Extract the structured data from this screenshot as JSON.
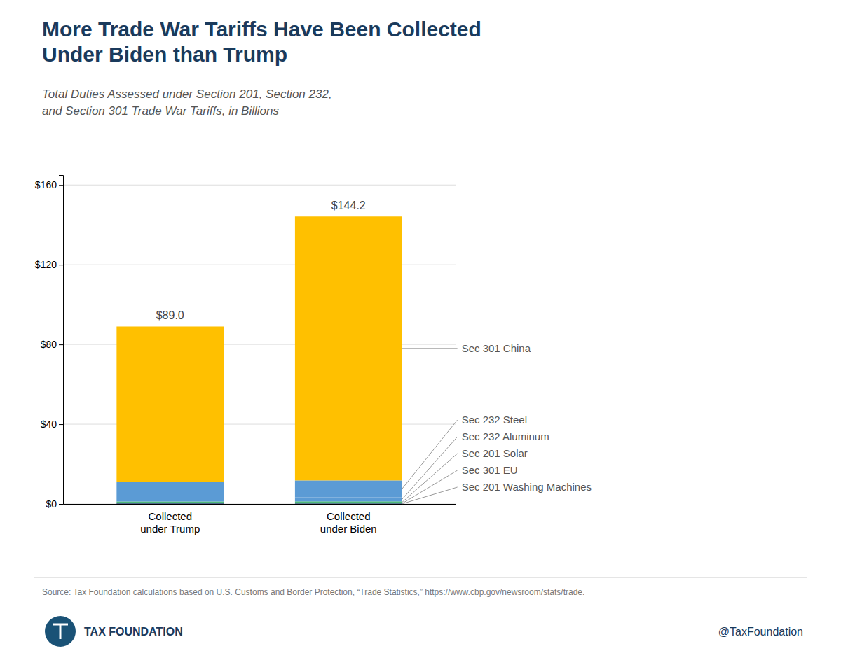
{
  "chart_data": {
    "type": "bar",
    "stacked": true,
    "title": "More Trade War Tariffs Have Been Collected\nUnder Biden than Trump",
    "subtitle": "Total Duties Assessed under Section 201, Section 232,\nand Section 301 Trade War Tariffs, in Billions",
    "categories": [
      "Collected\nunder Trump",
      "Collected\nunder Biden"
    ],
    "series": [
      {
        "name": "Sec 201 Washing Machines",
        "color": "#1c3f6e",
        "values": [
          0.15,
          0.1
        ]
      },
      {
        "name": "Sec 301 EU",
        "color": "#1c3f6e",
        "values": [
          0.2,
          0.2
        ]
      },
      {
        "name": "Sec 201 Solar",
        "color": "#4db87a",
        "values": [
          0.9,
          1.0
        ]
      },
      {
        "name": "Sec 232 Aluminum",
        "color": "#5b9bd5",
        "values": [
          1.9,
          2.0
        ]
      },
      {
        "name": "Sec 232 Steel",
        "color": "#5b9bd5",
        "values": [
          7.8,
          8.5
        ]
      },
      {
        "name": "Sec 301 China",
        "color": "#ffc000",
        "values": [
          78.05,
          132.4
        ]
      }
    ],
    "totals": [
      89.0,
      144.2
    ],
    "total_labels": [
      "$89.0",
      "$144.2"
    ],
    "ylim": [
      0,
      165
    ],
    "yticks": [
      {
        "value": 0,
        "label": "$0"
      },
      {
        "value": 40,
        "label": "$40"
      },
      {
        "value": 80,
        "label": "$80"
      },
      {
        "value": 120,
        "label": "$120"
      },
      {
        "value": 160,
        "label": "$160"
      }
    ],
    "grid": true,
    "legend": false,
    "source": "Source: Tax Foundation calculations based on U.S. Customs and Border Protection, “Trade Statistics,” https://www.cbp.gov/newsroom/stats/trade.",
    "logo_text": "TAX FOUNDATION",
    "twitter_handle": "@TaxFoundation"
  }
}
